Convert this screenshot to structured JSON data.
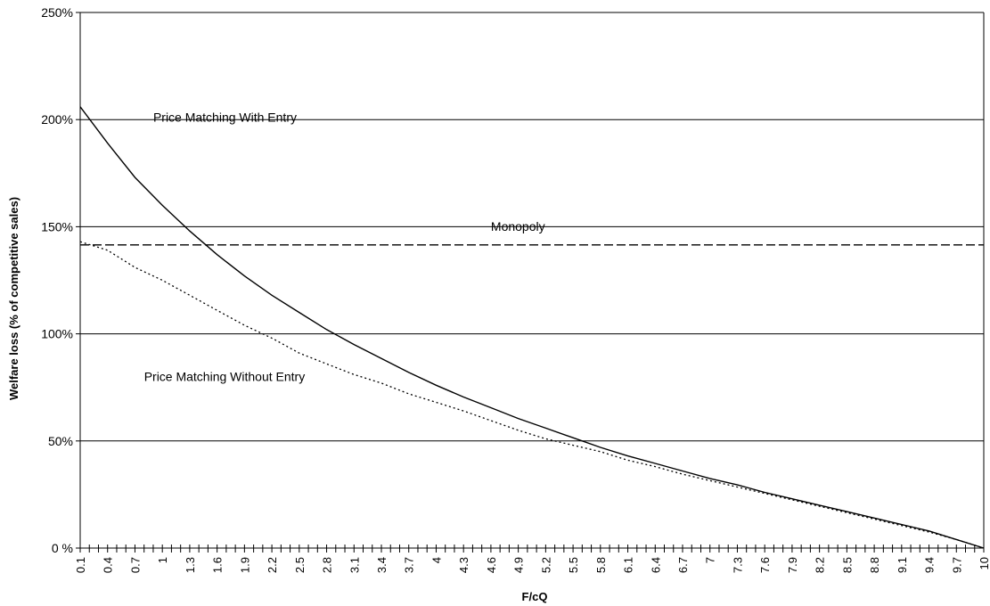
{
  "chart_data": {
    "type": "line",
    "title": "",
    "xlabel": "F/cQ",
    "ylabel": "Welfare loss (% of competitive sales)",
    "x_range": [
      0.1,
      10
    ],
    "ylim": [
      0,
      250
    ],
    "y_ticks": [
      {
        "value": 0,
        "label": "0 %"
      },
      {
        "value": 50,
        "label": "50%"
      },
      {
        "value": 100,
        "label": "100%"
      },
      {
        "value": 150,
        "label": "150%"
      },
      {
        "value": 200,
        "label": "200%"
      },
      {
        "value": 250,
        "label": "250%"
      }
    ],
    "x_ticks": [
      "0.1",
      "0.4",
      "0.7",
      "1",
      "1.3",
      "1.6",
      "1.9",
      "2.2",
      "2.5",
      "2.8",
      "3.1",
      "3.4",
      "3.7",
      "4",
      "4.3",
      "4.6",
      "4.9",
      "5.2",
      "5.5",
      "5.8",
      "6.1",
      "6.4",
      "6.7",
      "7",
      "7.3",
      "7.6",
      "7.9",
      "8.2",
      "8.5",
      "8.8",
      "9.1",
      "9.4",
      "9.7",
      "10"
    ],
    "grid": {
      "horizontal": true,
      "vertical": false
    },
    "annotations": [
      {
        "text": "Price Matching With Entry",
        "x": 0.9,
        "y": 199
      },
      {
        "text": "Monopoly",
        "x": 4.6,
        "y": 148
      },
      {
        "text": "Price Matching Without Entry",
        "x": 0.8,
        "y": 78
      }
    ],
    "series": [
      {
        "style": "solid",
        "x": [
          0.1,
          0.4,
          0.7,
          1.0,
          1.3,
          1.6,
          1.9,
          2.2,
          2.5,
          2.8,
          3.1,
          3.4,
          3.7,
          4.0,
          4.3,
          4.6,
          4.9,
          5.2,
          5.5,
          5.8,
          6.1,
          6.4,
          6.7,
          7.0,
          7.3,
          7.6,
          7.9,
          8.2,
          8.5,
          8.8,
          9.1,
          9.4,
          9.7,
          10.0
        ],
        "y": [
          206,
          189,
          173,
          160,
          148,
          137,
          127,
          118,
          110,
          102,
          95,
          88.5,
          82,
          76,
          70.5,
          65.5,
          60.5,
          56,
          51.5,
          47,
          43,
          39.5,
          36,
          32.5,
          29.5,
          26,
          23,
          20,
          17,
          14,
          11,
          8,
          4,
          0
        ]
      },
      {
        "style": "dashed",
        "x": [
          0.1,
          10.0
        ],
        "y": [
          141.5,
          141.5
        ]
      },
      {
        "style": "dotted",
        "x": [
          0.1,
          0.4,
          0.7,
          1.0,
          1.3,
          1.6,
          1.9,
          2.2,
          2.5,
          2.8,
          3.1,
          3.4,
          3.7,
          4.0,
          4.3,
          4.6,
          4.9,
          5.2,
          5.5,
          5.8,
          6.1,
          6.4,
          6.7,
          7.0,
          7.3,
          7.6,
          7.9,
          8.2,
          8.5,
          8.8,
          9.1,
          9.4,
          9.7,
          10.0
        ],
        "y": [
          143,
          139,
          131,
          125,
          118,
          111,
          104,
          98,
          91,
          86,
          81,
          77,
          72,
          68,
          64,
          59.5,
          55,
          51,
          48,
          45,
          41,
          38,
          34.5,
          31.5,
          28.5,
          25.5,
          22.5,
          19.5,
          16.5,
          13.5,
          10.5,
          7.5,
          4,
          0
        ]
      }
    ]
  }
}
